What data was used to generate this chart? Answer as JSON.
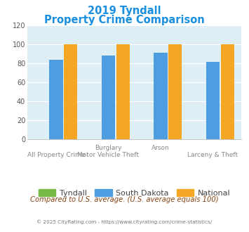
{
  "title_line1": "2019 Tyndall",
  "title_line2": "Property Crime Comparison",
  "title_color": "#1a8fe0",
  "groups": [
    {
      "tyndall": 0,
      "south_dakota": 84,
      "national": 100
    },
    {
      "tyndall": 0,
      "south_dakota": 88,
      "national": 100
    },
    {
      "tyndall": 0,
      "south_dakota": 91,
      "national": 100
    },
    {
      "tyndall": 0,
      "south_dakota": 82,
      "national": 100
    }
  ],
  "tyndall_color": "#77bb44",
  "sd_color": "#4d9de0",
  "national_color": "#f5a623",
  "plot_bg": "#ddeef5",
  "ylim": [
    0,
    120
  ],
  "yticks": [
    0,
    20,
    40,
    60,
    80,
    100,
    120
  ],
  "top_xlabels": [
    [
      "Burglary",
      1
    ],
    [
      "Arson",
      2
    ]
  ],
  "bot_xlabels": [
    [
      "All Property Crime",
      0
    ],
    [
      "Motor Vehicle Theft",
      1
    ],
    [
      "Larceny & Theft",
      3
    ]
  ],
  "legend_labels": [
    "Tyndall",
    "South Dakota",
    "National"
  ],
  "footnote": "Compared to U.S. average. (U.S. average equals 100)",
  "footnote_color": "#8b4513",
  "copyright": "© 2025 CityRating.com - https://www.cityrating.com/crime-statistics/",
  "copyright_color": "#777777"
}
